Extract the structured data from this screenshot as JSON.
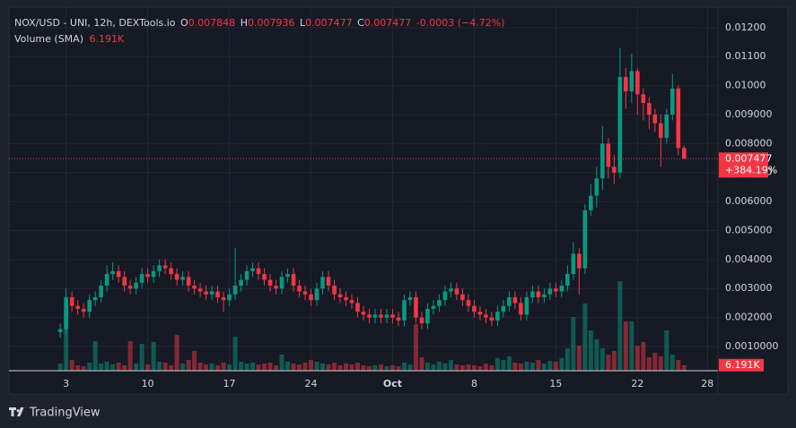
{
  "header": {
    "symbol": "NOX/USD - UNI, 12h, DEXTools.io",
    "o_label": "O",
    "o": "0.007848",
    "h_label": "H",
    "h": "0.007936",
    "l_label": "L",
    "l": "0.007477",
    "c_label": "C",
    "c": "0.007477",
    "change": "-0.0003 (−4.72%)",
    "volume_label": "Volume (SMA)",
    "volume_value": "6.191K"
  },
  "price_tag": {
    "price": "0.007477",
    "change": "+384.19%"
  },
  "volume_tag": "6.191K",
  "footer": "TradingView",
  "chart_data": {
    "type": "candlestick",
    "up_color": "#089981",
    "down_color": "#f23645",
    "grid": true,
    "xlim": [
      -8.8,
      112.8
    ],
    "xticks": [
      {
        "value": 1,
        "label": "3"
      },
      {
        "value": 15,
        "label": "10"
      },
      {
        "value": 29,
        "label": "17"
      },
      {
        "value": 43,
        "label": "24"
      },
      {
        "value": 57,
        "label": "Oct"
      },
      {
        "value": 71,
        "label": "8"
      },
      {
        "value": 85,
        "label": "15"
      },
      {
        "value": 99,
        "label": "22"
      },
      {
        "value": 111,
        "label": "28"
      }
    ],
    "ylim": [
      0.000166,
      0.01249
    ],
    "yticks": [
      {
        "value": 0.001,
        "label": "0.0010000"
      },
      {
        "value": 0.002,
        "label": "0.002000"
      },
      {
        "value": 0.003,
        "label": "0.003000"
      },
      {
        "value": 0.004,
        "label": "0.004000"
      },
      {
        "value": 0.005,
        "label": "0.005000"
      },
      {
        "value": 0.006,
        "label": "0.006000"
      },
      {
        "value": 0.007,
        "label": "0.007000"
      },
      {
        "value": 0.008,
        "label": "0.008000"
      },
      {
        "value": 0.009,
        "label": "0.009000"
      },
      {
        "value": 0.01,
        "label": "0.01000"
      },
      {
        "value": 0.011,
        "label": "0.01100"
      },
      {
        "value": 0.012,
        "label": "0.01200"
      }
    ],
    "volume_lim": [
      0,
      399000
    ],
    "open": [
      0.0015,
      0.0016,
      0.0027,
      0.0024,
      0.0023,
      0.0022,
      0.0026,
      0.0027,
      0.0031,
      0.0035,
      0.0036,
      0.0034,
      0.0031,
      0.003,
      0.0032,
      0.0035,
      0.0034,
      0.0036,
      0.0038,
      0.0037,
      0.0035,
      0.0033,
      0.0034,
      0.0031,
      0.003,
      0.0029,
      0.0028,
      0.0029,
      0.0027,
      0.0026,
      0.0028,
      0.0031,
      0.0033,
      0.0036,
      0.0037,
      0.0035,
      0.0033,
      0.0031,
      0.003,
      0.0034,
      0.0035,
      0.0031,
      0.0029,
      0.0028,
      0.0026,
      0.003,
      0.0034,
      0.0031,
      0.0028,
      0.0027,
      0.0026,
      0.0025,
      0.0022,
      0.0021,
      0.002,
      0.0021,
      0.002,
      0.0021,
      0.002,
      0.0019,
      0.0026,
      0.0027,
      0.002,
      0.0018,
      0.0023,
      0.0024,
      0.0026,
      0.0029,
      0.003,
      0.0028,
      0.0026,
      0.0024,
      0.0022,
      0.0021,
      0.002,
      0.0019,
      0.0022,
      0.0024,
      0.0027,
      0.0025,
      0.0021,
      0.0027,
      0.0029,
      0.0027,
      0.0028,
      0.003,
      0.0029,
      0.0031,
      0.0035,
      0.0042,
      0.0037,
      0.0057,
      0.0062,
      0.0068,
      0.008,
      0.0072,
      0.007,
      0.0103,
      0.0098,
      0.0105,
      0.0097,
      0.0094,
      0.009,
      0.0087,
      0.0082,
      0.009,
      0.0099,
      0.007848
    ],
    "high": [
      0.0018,
      0.003,
      0.0029,
      0.0026,
      0.0025,
      0.0028,
      0.0029,
      0.0033,
      0.0038,
      0.0039,
      0.0038,
      0.0036,
      0.0033,
      0.0034,
      0.0037,
      0.0037,
      0.0038,
      0.004,
      0.004,
      0.0039,
      0.0037,
      0.0036,
      0.0036,
      0.0033,
      0.0032,
      0.0031,
      0.0031,
      0.0031,
      0.0029,
      0.003,
      0.0044,
      0.0035,
      0.0038,
      0.0039,
      0.0039,
      0.0037,
      0.0035,
      0.0033,
      0.0036,
      0.0037,
      0.0037,
      0.0033,
      0.0031,
      0.003,
      0.0032,
      0.0036,
      0.0036,
      0.0033,
      0.003,
      0.0029,
      0.0028,
      0.0027,
      0.0024,
      0.0023,
      0.0023,
      0.0023,
      0.0023,
      0.0023,
      0.0022,
      0.0028,
      0.0029,
      0.0029,
      0.0022,
      0.0025,
      0.0026,
      0.0028,
      0.0031,
      0.0032,
      0.0032,
      0.003,
      0.0028,
      0.0026,
      0.0024,
      0.0023,
      0.0022,
      0.0024,
      0.0026,
      0.0029,
      0.0029,
      0.0027,
      0.0029,
      0.0031,
      0.0031,
      0.003,
      0.0032,
      0.0032,
      0.0033,
      0.0038,
      0.0046,
      0.0044,
      0.0059,
      0.0066,
      0.0072,
      0.0086,
      0.0082,
      0.0076,
      0.0113,
      0.0106,
      0.0111,
      0.0106,
      0.0099,
      0.0096,
      0.0092,
      0.009,
      0.0092,
      0.0104,
      0.01,
      0.007936
    ],
    "low": [
      0.0013,
      0.0014,
      0.0022,
      0.0021,
      0.002,
      0.002,
      0.0024,
      0.0025,
      0.0029,
      0.0033,
      0.0032,
      0.0029,
      0.0028,
      0.0028,
      0.003,
      0.0032,
      0.0032,
      0.0034,
      0.0035,
      0.0033,
      0.0031,
      0.0031,
      0.0029,
      0.0028,
      0.0027,
      0.0026,
      0.0026,
      0.0025,
      0.0022,
      0.0024,
      0.0026,
      0.0029,
      0.0031,
      0.0034,
      0.0033,
      0.0031,
      0.0029,
      0.0028,
      0.0028,
      0.0032,
      0.0029,
      0.0027,
      0.0026,
      0.0024,
      0.0024,
      0.0028,
      0.0029,
      0.0026,
      0.0025,
      0.0024,
      0.0023,
      0.002,
      0.0019,
      0.0018,
      0.0018,
      0.0018,
      0.0018,
      0.0018,
      0.0017,
      0.0017,
      0.0024,
      0.0018,
      0.0016,
      0.0016,
      0.0021,
      0.0022,
      0.0024,
      0.0027,
      0.0026,
      0.0024,
      0.0022,
      0.002,
      0.0019,
      0.0018,
      0.0017,
      0.0017,
      0.002,
      0.0022,
      0.0023,
      0.0019,
      0.0019,
      0.0025,
      0.0025,
      0.0025,
      0.0026,
      0.0027,
      0.0027,
      0.0029,
      0.0033,
      0.0028,
      0.0035,
      0.0055,
      0.0058,
      0.0064,
      0.0068,
      0.0066,
      0.0068,
      0.0092,
      0.0094,
      0.009,
      0.0088,
      0.0085,
      0.0084,
      0.0072,
      0.008,
      0.0088,
      0.0076,
      0.007477
    ],
    "close": [
      0.0016,
      0.0027,
      0.0024,
      0.0023,
      0.0022,
      0.0026,
      0.0027,
      0.0031,
      0.0035,
      0.0036,
      0.0034,
      0.0031,
      0.003,
      0.0032,
      0.0035,
      0.0034,
      0.0036,
      0.0038,
      0.0037,
      0.0035,
      0.0033,
      0.0034,
      0.0031,
      0.003,
      0.0029,
      0.0028,
      0.0029,
      0.0027,
      0.0026,
      0.0028,
      0.0031,
      0.0033,
      0.0036,
      0.0037,
      0.0035,
      0.0033,
      0.0031,
      0.003,
      0.0034,
      0.0035,
      0.0031,
      0.0029,
      0.0028,
      0.0026,
      0.003,
      0.0034,
      0.0031,
      0.0028,
      0.0027,
      0.0026,
      0.0025,
      0.0022,
      0.0021,
      0.002,
      0.0021,
      0.002,
      0.0021,
      0.002,
      0.0019,
      0.0026,
      0.0027,
      0.002,
      0.0018,
      0.0023,
      0.0024,
      0.0026,
      0.0029,
      0.003,
      0.0028,
      0.0026,
      0.0024,
      0.0022,
      0.0021,
      0.002,
      0.0019,
      0.0022,
      0.0024,
      0.0027,
      0.0025,
      0.0021,
      0.0027,
      0.0029,
      0.0027,
      0.0028,
      0.003,
      0.0029,
      0.0031,
      0.0035,
      0.0042,
      0.0037,
      0.0057,
      0.0062,
      0.0068,
      0.008,
      0.0072,
      0.007,
      0.0103,
      0.0098,
      0.0105,
      0.0097,
      0.0094,
      0.009,
      0.0087,
      0.0082,
      0.009,
      0.0099,
      0.007848,
      0.007477
    ],
    "volume": [
      8000,
      75000,
      12000,
      6000,
      5000,
      9000,
      33000,
      8000,
      10000,
      7000,
      9000,
      6000,
      33000,
      8000,
      30000,
      7000,
      32000,
      10000,
      9000,
      6000,
      40000,
      8000,
      12000,
      22000,
      9000,
      7000,
      8000,
      6000,
      9000,
      7000,
      38000,
      10000,
      8000,
      9000,
      7000,
      8000,
      9000,
      6000,
      18000,
      10000,
      8000,
      7000,
      9000,
      12000,
      10000,
      8000,
      7000,
      9000,
      6000,
      8000,
      7000,
      9000,
      6000,
      5000,
      6000,
      7000,
      5000,
      6000,
      5000,
      9000,
      7000,
      52000,
      15000,
      9000,
      7000,
      10000,
      8000,
      12000,
      7000,
      6000,
      7000,
      6000,
      5000,
      8000,
      6000,
      14000,
      12000,
      16000,
      9000,
      8000,
      10000,
      9000,
      12000,
      8000,
      11000,
      10000,
      14000,
      25000,
      60000,
      28000,
      75000,
      45000,
      35000,
      25000,
      18000,
      22000,
      100000,
      55000,
      55000,
      28000,
      32000,
      15000,
      20000,
      16000,
      45000,
      18000,
      12000,
      6191
    ]
  }
}
